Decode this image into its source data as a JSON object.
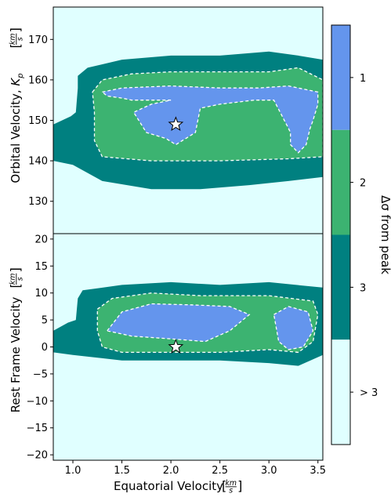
{
  "chart_data": {
    "type": "contour",
    "colors": {
      "background": "#e0ffff",
      "level_1": "#6495ed",
      "level_2": "#3cb371",
      "level_3": "#008080",
      "contour_line": "#ffffff"
    },
    "shared_x": {
      "label": "Equatorial Velocity",
      "unit": "km/s",
      "ticks": [
        1.0,
        1.5,
        2.0,
        2.5,
        3.0,
        3.5
      ],
      "tick_labels": [
        "1.0",
        "1.5",
        "2.0",
        "2.5",
        "3.0",
        "3.5"
      ],
      "range": [
        0.8,
        3.55
      ]
    },
    "panels": [
      {
        "id": "top",
        "ylabel": "Orbital Velocity,",
        "ylabel_symbol": "K",
        "ylabel_sub": "p",
        "unit": "km/s",
        "ylim": [
          122,
          178
        ],
        "yticks": [
          130,
          140,
          150,
          160,
          170
        ],
        "ytick_labels": [
          "130",
          "140",
          "150",
          "160",
          "170"
        ],
        "peak": {
          "x": 2.05,
          "y": 149
        },
        "region_3": [
          [
            0.8,
            140
          ],
          [
            0.8,
            149
          ],
          [
            0.98,
            151
          ],
          [
            1.03,
            152
          ],
          [
            1.05,
            158
          ],
          [
            1.05,
            161
          ],
          [
            1.15,
            163
          ],
          [
            1.5,
            165
          ],
          [
            2.0,
            166
          ],
          [
            2.5,
            166
          ],
          [
            3.0,
            167
          ],
          [
            3.3,
            166
          ],
          [
            3.55,
            165
          ],
          [
            3.55,
            136
          ],
          [
            3.2,
            135
          ],
          [
            2.8,
            134
          ],
          [
            2.3,
            133
          ],
          [
            1.8,
            133
          ],
          [
            1.3,
            135
          ],
          [
            1.0,
            139
          ]
        ],
        "region_2": [
          [
            1.2,
            157
          ],
          [
            1.3,
            160
          ],
          [
            1.6,
            161.5
          ],
          [
            2.0,
            162
          ],
          [
            2.5,
            162
          ],
          [
            3.0,
            162
          ],
          [
            3.3,
            163
          ],
          [
            3.55,
            160
          ],
          [
            3.55,
            141
          ],
          [
            3.2,
            140.5
          ],
          [
            2.5,
            140
          ],
          [
            1.8,
            140
          ],
          [
            1.3,
            141
          ],
          [
            1.22,
            145
          ],
          [
            1.22,
            152
          ]
        ],
        "region_1a": [
          [
            1.3,
            157
          ],
          [
            1.5,
            158
          ],
          [
            2.0,
            158.5
          ],
          [
            2.5,
            158
          ],
          [
            2.9,
            158
          ],
          [
            3.2,
            158.5
          ],
          [
            3.5,
            157
          ],
          [
            3.5,
            154
          ],
          [
            3.45,
            150
          ],
          [
            3.42,
            148
          ],
          [
            3.38,
            144
          ],
          [
            3.3,
            142
          ],
          [
            3.22,
            144
          ],
          [
            3.22,
            147
          ],
          [
            3.2,
            148
          ],
          [
            3.05,
            155
          ],
          [
            2.85,
            155
          ],
          [
            2.5,
            154
          ],
          [
            2.3,
            153
          ],
          [
            2.25,
            147
          ],
          [
            2.05,
            144
          ],
          [
            1.95,
            145.5
          ],
          [
            1.75,
            147
          ],
          [
            1.62,
            152
          ],
          [
            1.8,
            154
          ],
          [
            2.0,
            155
          ],
          [
            1.8,
            155
          ],
          [
            1.6,
            155
          ],
          [
            1.5,
            155.5
          ],
          [
            1.35,
            156
          ]
        ]
      },
      {
        "id": "bottom",
        "ylabel": "Rest Frame Velocity",
        "unit": "km/s",
        "ylim": [
          -21,
          21
        ],
        "yticks": [
          -20,
          -15,
          -10,
          -5,
          0,
          5,
          10,
          15,
          20
        ],
        "ytick_labels": [
          "−20",
          "−15",
          "−10",
          "−5",
          "0",
          "5",
          "10",
          "15",
          "20"
        ],
        "peak": {
          "x": 2.05,
          "y": 0
        },
        "region_3": [
          [
            0.8,
            3
          ],
          [
            0.95,
            4.5
          ],
          [
            1.03,
            5
          ],
          [
            1.05,
            9
          ],
          [
            1.1,
            10.5
          ],
          [
            1.5,
            11.5
          ],
          [
            2.0,
            12
          ],
          [
            2.5,
            11.5
          ],
          [
            3.0,
            12
          ],
          [
            3.55,
            11
          ],
          [
            3.55,
            -1.5
          ],
          [
            3.3,
            -3.5
          ],
          [
            3.0,
            -3
          ],
          [
            2.5,
            -2.5
          ],
          [
            2.0,
            -2.5
          ],
          [
            1.5,
            -2.5
          ],
          [
            1.0,
            -1.5
          ],
          [
            0.8,
            -1
          ]
        ],
        "region_2": [
          [
            1.25,
            7
          ],
          [
            1.4,
            9
          ],
          [
            1.8,
            10
          ],
          [
            2.3,
            9.5
          ],
          [
            2.6,
            9.5
          ],
          [
            3.0,
            9.5
          ],
          [
            3.45,
            8.5
          ],
          [
            3.5,
            6
          ],
          [
            3.45,
            1
          ],
          [
            3.3,
            -1
          ],
          [
            3.0,
            -0.5
          ],
          [
            2.5,
            -1
          ],
          [
            2.0,
            -1
          ],
          [
            1.5,
            -1
          ],
          [
            1.3,
            0
          ],
          [
            1.25,
            3
          ]
        ],
        "region_1a": [
          [
            1.35,
            3
          ],
          [
            1.5,
            6.5
          ],
          [
            1.8,
            8
          ],
          [
            2.2,
            7.8
          ],
          [
            2.6,
            7.5
          ],
          [
            2.8,
            6
          ],
          [
            2.6,
            3
          ],
          [
            2.35,
            1
          ],
          [
            2.0,
            1.5
          ],
          [
            1.6,
            2
          ]
        ],
        "region_1b": [
          [
            3.05,
            6
          ],
          [
            3.2,
            7.5
          ],
          [
            3.4,
            6.5
          ],
          [
            3.45,
            3
          ],
          [
            3.35,
            0
          ],
          [
            3.2,
            -0.5
          ],
          [
            3.1,
            1
          ]
        ]
      }
    ],
    "colorbar": {
      "label": "Δσ from peak",
      "levels": [
        "1",
        "2",
        "3",
        "> 3"
      ]
    }
  }
}
